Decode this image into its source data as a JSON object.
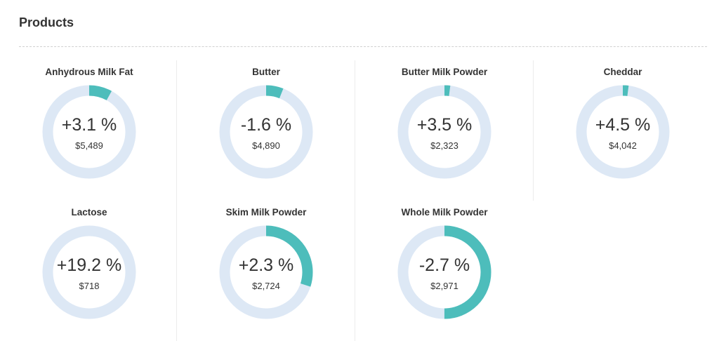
{
  "header": {
    "title": "Products"
  },
  "theme": {
    "track_color": "#dde8f5",
    "fill_color": "#4dbdbb"
  },
  "products": [
    {
      "name": "Anhydrous Milk Fat",
      "change": "+3.1 %",
      "price": "$5,489",
      "fill_fraction": 0.08
    },
    {
      "name": "Butter",
      "change": "-1.6 %",
      "price": "$4,890",
      "fill_fraction": 0.06
    },
    {
      "name": "Butter Milk Powder",
      "change": "+3.5 %",
      "price": "$2,323",
      "fill_fraction": 0.02
    },
    {
      "name": "Cheddar",
      "change": "+4.5 %",
      "price": "$4,042",
      "fill_fraction": 0.02
    },
    {
      "name": "Lactose",
      "change": "+19.2 %",
      "price": "$718",
      "fill_fraction": 0.0
    },
    {
      "name": "Skim Milk Powder",
      "change": "+2.3 %",
      "price": "$2,724",
      "fill_fraction": 0.3
    },
    {
      "name": "Whole Milk Powder",
      "change": "-2.7 %",
      "price": "$2,971",
      "fill_fraction": 0.5
    }
  ]
}
